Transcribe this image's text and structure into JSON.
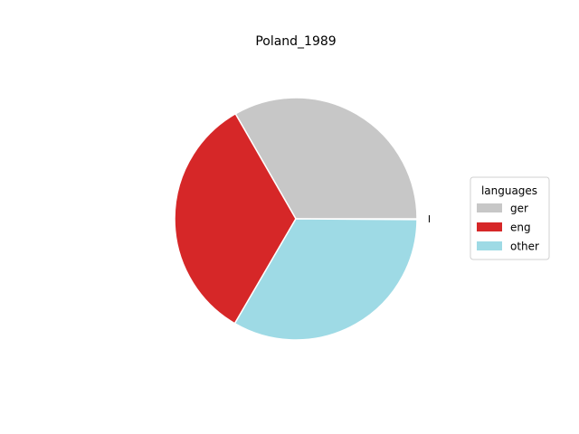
{
  "chart_data": {
    "type": "pie",
    "title": "Poland_1989",
    "legend_title": "languages",
    "legend_position": "center-right",
    "start_angle_deg": 0,
    "direction": "counterclockwise",
    "slices": [
      {
        "label": "ger",
        "value": 33.3,
        "color": "#c7c7c7"
      },
      {
        "label": "eng",
        "value": 33.3,
        "color": "#d62728"
      },
      {
        "label": "other",
        "value": 33.3,
        "color": "#9edae5"
      },
      {
        "label": "",
        "value": 0.1,
        "color": "#000000",
        "exploded": true
      }
    ],
    "legend_entries": [
      {
        "label": "ger",
        "color": "#c7c7c7"
      },
      {
        "label": "eng",
        "color": "#d62728"
      },
      {
        "label": "other",
        "color": "#9edae5"
      }
    ]
  }
}
